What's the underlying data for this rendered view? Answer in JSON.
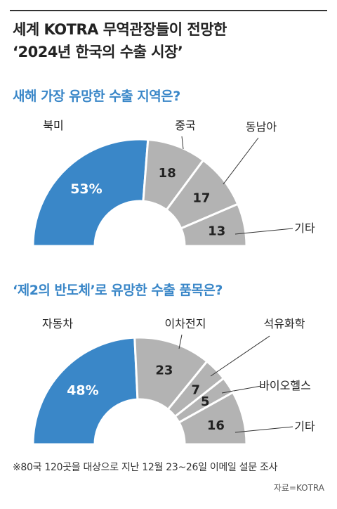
{
  "title": {
    "line1": "세계 KOTRA 무역관장들이 전망한",
    "line2": "‘2024년 한국의 수출 시장’"
  },
  "colors": {
    "blue": "#3a87c8",
    "gray": "#b3b3b3",
    "section_title": "#3a87c8"
  },
  "chart_data": [
    {
      "type": "pie",
      "style": "half-donut",
      "title": "새해 가장 유망한 수출 지역은?",
      "categories": [
        "북미",
        "중국",
        "동남아",
        "기타"
      ],
      "values": [
        53,
        18,
        17,
        13
      ],
      "value_labels": [
        "53%",
        "18",
        "17",
        "13"
      ]
    },
    {
      "type": "pie",
      "style": "half-donut",
      "title": "‘제2의 반도체’로 유망한 수출 품목은?",
      "categories": [
        "자동차",
        "이차전지",
        "석유화학",
        "바이오헬스",
        "기타"
      ],
      "values": [
        48,
        23,
        7,
        5,
        16
      ],
      "value_labels": [
        "48%",
        "23",
        "7",
        "5",
        "16"
      ]
    }
  ],
  "footnote": "※80국 120곳을 대상으로 지난 12월 23~26일 이메일 설문 조사",
  "source": "자료=KOTRA"
}
